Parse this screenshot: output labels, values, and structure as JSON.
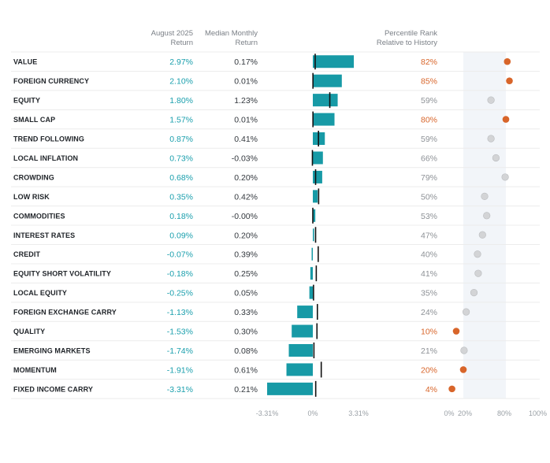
{
  "headers": {
    "aug_line1": "August 2025",
    "aug_line2": "Return",
    "med_line1": "Median Monthly",
    "med_line2": "Return",
    "pct_line1": "Percentile Rank",
    "pct_line2": "Relative to History"
  },
  "colors": {
    "bar": "#179aa6",
    "return_text": "#1a9fad",
    "highlight": "#d8652a",
    "dot_normal": "#d3d4d6",
    "band": "#f2f5f9"
  },
  "chart_data": {
    "type": "bar",
    "title": "",
    "categories": [
      "VALUE",
      "FOREIGN CURRENCY",
      "EQUITY",
      "SMALL CAP",
      "TREND FOLLOWING",
      "LOCAL INFLATION",
      "CROWDING",
      "LOW RISK",
      "COMMODITIES",
      "INTEREST RATES",
      "CREDIT",
      "EQUITY SHORT VOLATILITY",
      "LOCAL EQUITY",
      "FOREIGN EXCHANGE CARRY",
      "QUALITY",
      "EMERGING MARKETS",
      "MOMENTUM",
      "FIXED INCOME CARRY"
    ],
    "series": [
      {
        "name": "August 2025 Return",
        "values": [
          2.97,
          2.1,
          1.8,
          1.57,
          0.87,
          0.73,
          0.68,
          0.35,
          0.18,
          0.09,
          -0.07,
          -0.18,
          -0.25,
          -1.13,
          -1.53,
          -1.74,
          -1.91,
          -3.31
        ]
      },
      {
        "name": "Median Monthly Return",
        "values": [
          0.17,
          0.01,
          1.23,
          0.01,
          0.41,
          -0.03,
          0.2,
          0.42,
          0.0,
          0.2,
          0.39,
          0.25,
          0.05,
          0.33,
          0.3,
          0.08,
          0.61,
          0.21
        ]
      },
      {
        "name": "Percentile Rank Relative to History",
        "values": [
          82,
          85,
          59,
          80,
          59,
          66,
          79,
          50,
          53,
          47,
          40,
          41,
          35,
          24,
          10,
          21,
          20,
          4
        ]
      }
    ],
    "return_labels": [
      "2.97%",
      "2.10%",
      "1.80%",
      "1.57%",
      "0.87%",
      "0.73%",
      "0.68%",
      "0.35%",
      "0.18%",
      "0.09%",
      "-0.07%",
      "-0.18%",
      "-0.25%",
      "-1.13%",
      "-1.53%",
      "-1.74%",
      "-1.91%",
      "-3.31%"
    ],
    "median_labels": [
      "0.17%",
      "0.01%",
      "1.23%",
      "0.01%",
      "0.41%",
      "-0.03%",
      "0.20%",
      "0.42%",
      "-0.00%",
      "0.20%",
      "0.39%",
      "0.25%",
      "0.05%",
      "0.33%",
      "0.30%",
      "0.08%",
      "0.61%",
      "0.21%"
    ],
    "percentile_labels": [
      "82%",
      "85%",
      "59%",
      "80%",
      "59%",
      "66%",
      "79%",
      "50%",
      "53%",
      "47%",
      "40%",
      "41%",
      "35%",
      "24%",
      "10%",
      "21%",
      "20%",
      "4%"
    ],
    "bar_axis": {
      "range": [
        -3.31,
        3.31
      ],
      "ticks": [
        "-3.31%",
        "0%",
        "3.31%"
      ],
      "tick_values": [
        -3.31,
        0,
        3.31
      ]
    },
    "rank_axis": {
      "range": [
        0,
        100
      ],
      "ticks": [
        "0%",
        "20%",
        "80%",
        "100%"
      ],
      "tick_values": [
        0,
        20,
        80,
        100
      ],
      "band": [
        20,
        80
      ]
    },
    "highlight_rule": "percentile at or above 80% or at or below 20% shown in orange"
  }
}
